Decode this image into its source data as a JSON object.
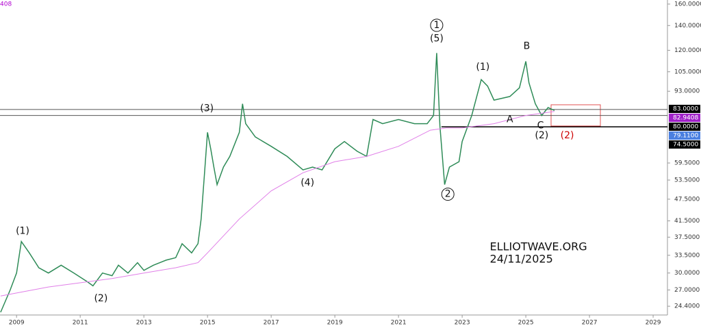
{
  "chart_data": {
    "type": "line",
    "ma_label": "408",
    "log_scale": true,
    "xlim": [
      2008.48,
      2029.45
    ],
    "ylim": [
      23.3,
      164.1
    ],
    "xticks": [
      2009,
      2011,
      2013,
      2015,
      2017,
      2019,
      2021,
      2023,
      2025,
      2027,
      2029
    ],
    "yticks": [
      {
        "value": 160,
        "label": "160.0000"
      },
      {
        "value": 140,
        "label": "140.0000"
      },
      {
        "value": 120,
        "label": "120.0000"
      },
      {
        "value": 105,
        "label": "105.0000"
      },
      {
        "value": 93,
        "label": "93.0000"
      },
      {
        "value": 59.5,
        "label": "59.5000"
      },
      {
        "value": 53.5,
        "label": "53.5000"
      },
      {
        "value": 47.5,
        "label": "47.5000"
      },
      {
        "value": 41.5,
        "label": "41.5000"
      },
      {
        "value": 37.5,
        "label": "37.5000"
      },
      {
        "value": 33.5,
        "label": "33.5000"
      },
      {
        "value": 30,
        "label": "30.0000"
      },
      {
        "value": 27,
        "label": "27.0000"
      },
      {
        "value": 24.4,
        "label": "24.4000"
      }
    ],
    "grid": false,
    "series": [
      {
        "color": "#2e8b57",
        "x": [
          2008.5,
          2008.8,
          2009.0,
          2009.15,
          2009.4,
          2009.7,
          2010.0,
          2010.4,
          2010.8,
          2011.2,
          2011.4,
          2011.7,
          2012.0,
          2012.2,
          2012.5,
          2012.8,
          2013.0,
          2013.3,
          2013.7,
          2014.0,
          2014.2,
          2014.5,
          2014.7,
          2014.8,
          2014.9,
          2015.0,
          2015.1,
          2015.2,
          2015.3,
          2015.5,
          2015.7,
          2016.0,
          2016.1,
          2016.2,
          2016.5,
          2017.0,
          2017.5,
          2018.0,
          2018.3,
          2018.6,
          2019.0,
          2019.3,
          2019.7,
          2020.0,
          2020.2,
          2020.5,
          2021.0,
          2021.5,
          2021.9,
          2022.1,
          2022.2,
          2022.3,
          2022.45,
          2022.6,
          2022.9,
          2023.0,
          2023.3,
          2023.6,
          2023.8,
          2024.0,
          2024.5,
          2024.8,
          2025.0,
          2025.1,
          2025.3,
          2025.5,
          2025.7,
          2025.9
        ],
        "values": [
          23.5,
          27,
          30,
          36.5,
          34,
          31,
          30,
          31.5,
          30,
          28.5,
          27.7,
          30,
          29.5,
          31.5,
          30,
          32,
          30.5,
          31.5,
          32.5,
          33,
          36,
          34,
          36,
          42,
          55,
          72,
          65,
          58,
          52,
          58,
          62,
          72,
          86,
          76,
          70,
          66,
          62,
          57,
          58,
          57,
          65,
          68,
          64,
          62,
          78,
          76,
          78,
          76,
          76,
          80,
          118,
          75,
          52,
          58,
          60,
          68,
          80,
          100,
          96,
          88,
          90,
          95,
          112,
          98,
          86,
          80,
          84,
          82.5
        ]
      },
      {
        "color": "#e07ee8",
        "x": [
          2008.5,
          2010,
          2012,
          2013,
          2014,
          2014.7,
          2015,
          2016,
          2017,
          2018,
          2019,
          2020,
          2021,
          2022,
          2022.5,
          2023,
          2024,
          2025,
          2025.9
        ],
        "values": [
          26,
          27.5,
          29,
          30,
          31,
          32,
          34,
          42,
          50,
          56,
          60,
          62,
          66,
          73,
          74,
          74,
          76,
          80,
          82
        ]
      }
    ],
    "levels": [
      {
        "value": 83,
        "from": 2008.48,
        "color": "#555555"
      },
      {
        "value": 80,
        "from": 2008.48,
        "color": "#555555"
      },
      {
        "value": 74.5,
        "from": 2022.35,
        "color": "#000000"
      }
    ],
    "price_tags": [
      {
        "value": 83,
        "label": "83.0000",
        "color": "#000000"
      },
      {
        "value": 82.9408,
        "label": "82.9408",
        "color": "#a020c8"
      },
      {
        "value": 80,
        "label": "80.0000",
        "color": "#000000"
      },
      {
        "value": 79.11,
        "label": "79.1100",
        "color": "#4a7fe0"
      },
      {
        "value": 74.5,
        "label": "74.5000",
        "color": "#000000"
      }
    ],
    "annotations": [
      {
        "text": "(1)",
        "x": 2009.19,
        "y": 38.9
      },
      {
        "text": "(2)",
        "x": 2011.65,
        "y": 25.6
      },
      {
        "text": "(3)",
        "x": 2014.98,
        "y": 83.5
      },
      {
        "text": "(4)",
        "x": 2018.14,
        "y": 52.6
      },
      {
        "text": "1",
        "x": 2022.2,
        "y": 140.2,
        "circled": true
      },
      {
        "text": "(5)",
        "x": 2022.2,
        "y": 129
      },
      {
        "text": "2",
        "x": 2022.55,
        "y": 49,
        "circled": true
      },
      {
        "text": "(1)",
        "x": 2023.65,
        "y": 108
      },
      {
        "text": "B",
        "x": 2025.03,
        "y": 123
      },
      {
        "text": "A",
        "x": 2024.5,
        "y": 78
      },
      {
        "text": "C",
        "x": 2025.46,
        "y": 75
      },
      {
        "text": "(2)",
        "x": 2025.5,
        "y": 70.6
      },
      {
        "text": "(2)",
        "x": 2026.3,
        "y": 70.6,
        "color": "#cc0000"
      }
    ],
    "watermark": [
      {
        "text": "ELLIOTWAVE.ORG",
        "x": 2023.87,
        "y": 35.2
      },
      {
        "text": "24/11/2025",
        "x": 2023.87,
        "y": 32.6
      }
    ]
  }
}
